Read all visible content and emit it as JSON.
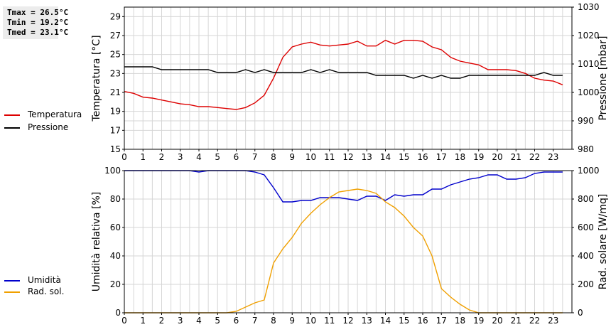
{
  "stats": {
    "tmax": "Tmax = 26.5°C",
    "tmin": "Tmin = 19.2°C",
    "tmed": "Tmed = 23.1°C"
  },
  "legends": {
    "top": [
      {
        "label": "Temperatura",
        "color": "#dd0000"
      },
      {
        "label": "Pressione",
        "color": "#000000"
      }
    ],
    "bottom": [
      {
        "label": "Umidità",
        "color": "#0000cc"
      },
      {
        "label": "Rad. sol.",
        "color": "#f0a000"
      }
    ]
  },
  "chart_data": [
    {
      "type": "line",
      "xlim": [
        0,
        24
      ],
      "xticks": [
        "0",
        "1",
        "2",
        "3",
        "4",
        "5",
        "6",
        "7",
        "8",
        "9",
        "10",
        "11",
        "12",
        "13",
        "14",
        "15",
        "16",
        "17",
        "18",
        "19",
        "20",
        "21",
        "22",
        "23"
      ],
      "ylabel": "Temperatura [°C]",
      "ylim": [
        15,
        30
      ],
      "yticks": [
        "15",
        "17",
        "19",
        "21",
        "23",
        "25",
        "27",
        "29"
      ],
      "y2label": "Pressione [mbar]",
      "y2lim": [
        980,
        1030
      ],
      "y2ticks": [
        "980",
        "990",
        "1000",
        "1010",
        "1020",
        "1030"
      ],
      "grid": true,
      "series": [
        {
          "name": "Temperatura",
          "axis": "left",
          "color": "#dd0000",
          "x": [
            0,
            0.5,
            1,
            1.5,
            2,
            2.5,
            3,
            3.5,
            4,
            4.5,
            5,
            5.5,
            6,
            6.5,
            7,
            7.5,
            8,
            8.5,
            9,
            9.5,
            10,
            10.5,
            11,
            11.5,
            12,
            12.5,
            13,
            13.5,
            14,
            14.5,
            15,
            15.5,
            16,
            16.5,
            17,
            17.5,
            18,
            18.5,
            19,
            19.5,
            20,
            20.5,
            21,
            21.5,
            22,
            22.5,
            23,
            23.5
          ],
          "values": [
            21.1,
            20.9,
            20.5,
            20.4,
            20.2,
            20.0,
            19.8,
            19.7,
            19.5,
            19.5,
            19.4,
            19.3,
            19.2,
            19.4,
            19.9,
            20.7,
            22.5,
            24.7,
            25.8,
            26.1,
            26.3,
            26.0,
            25.9,
            26.0,
            26.1,
            26.4,
            25.9,
            25.9,
            26.5,
            26.1,
            26.5,
            26.5,
            26.4,
            25.8,
            25.5,
            24.7,
            24.3,
            24.1,
            23.9,
            23.4,
            23.4,
            23.4,
            23.3,
            23.0,
            22.5,
            22.3,
            22.2,
            21.8
          ]
        },
        {
          "name": "Pressione",
          "axis": "right",
          "color": "#000000",
          "x": [
            0,
            0.5,
            1,
            1.5,
            2,
            2.5,
            3,
            3.5,
            4,
            4.5,
            5,
            5.5,
            6,
            6.5,
            7,
            7.5,
            8,
            8.5,
            9,
            9.5,
            10,
            10.5,
            11,
            11.5,
            12,
            12.5,
            13,
            13.5,
            14,
            14.5,
            15,
            15.5,
            16,
            16.5,
            17,
            17.5,
            18,
            18.5,
            19,
            19.5,
            20,
            20.5,
            21,
            21.5,
            22,
            22.5,
            23,
            23.5
          ],
          "values": [
            1009,
            1009,
            1009,
            1009,
            1008,
            1008,
            1008,
            1008,
            1008,
            1008,
            1007,
            1007,
            1007,
            1008,
            1007,
            1008,
            1007,
            1007,
            1007,
            1007,
            1008,
            1007,
            1008,
            1007,
            1007,
            1007,
            1007,
            1006,
            1006,
            1006,
            1006,
            1005,
            1006,
            1005,
            1006,
            1005,
            1005,
            1006,
            1006,
            1006,
            1006,
            1006,
            1006,
            1006,
            1006,
            1007,
            1006,
            1006
          ]
        }
      ]
    },
    {
      "type": "line",
      "xlim": [
        0,
        24
      ],
      "xticks": [
        "0",
        "1",
        "2",
        "3",
        "4",
        "5",
        "6",
        "7",
        "8",
        "9",
        "10",
        "11",
        "12",
        "13",
        "14",
        "15",
        "16",
        "17",
        "18",
        "19",
        "20",
        "21",
        "22",
        "23"
      ],
      "ylabel": "Umidità relativa [%]",
      "ylim": [
        0,
        100
      ],
      "yticks": [
        "0",
        "20",
        "40",
        "60",
        "80",
        "100"
      ],
      "y2label": "Rad. solare [W/mq]",
      "y2lim": [
        0,
        1000
      ],
      "y2ticks": [
        "0",
        "200",
        "400",
        "600",
        "800",
        "1000"
      ],
      "grid": true,
      "series": [
        {
          "name": "Umidità",
          "axis": "left",
          "color": "#0000cc",
          "x": [
            0,
            0.5,
            1,
            1.5,
            2,
            2.5,
            3,
            3.5,
            4,
            4.5,
            5,
            5.5,
            6,
            6.5,
            7,
            7.5,
            8,
            8.5,
            9,
            9.5,
            10,
            10.5,
            11,
            11.5,
            12,
            12.5,
            13,
            13.5,
            14,
            14.5,
            15,
            15.5,
            16,
            16.5,
            17,
            17.5,
            18,
            18.5,
            19,
            19.5,
            20,
            20.5,
            21,
            21.5,
            22,
            22.5,
            23,
            23.5
          ],
          "values": [
            100,
            100,
            100,
            100,
            100,
            100,
            100,
            100,
            99,
            100,
            100,
            100,
            100,
            100,
            99,
            97,
            88,
            78,
            78,
            79,
            79,
            81,
            81,
            81,
            80,
            79,
            82,
            82,
            79,
            83,
            82,
            83,
            83,
            87,
            87,
            90,
            92,
            94,
            95,
            97,
            97,
            94,
            94,
            95,
            98,
            99,
            99,
            99
          ]
        },
        {
          "name": "Rad. sol.",
          "axis": "right",
          "color": "#f0a000",
          "x": [
            0,
            0.5,
            1,
            1.5,
            2,
            2.5,
            3,
            3.5,
            4,
            4.5,
            5,
            5.5,
            6,
            6.5,
            7,
            7.5,
            8,
            8.5,
            9,
            9.5,
            10,
            10.5,
            11,
            11.5,
            12,
            12.5,
            13,
            13.5,
            14,
            14.5,
            15,
            15.5,
            16,
            16.5,
            17,
            17.5,
            18,
            18.5,
            19,
            19.5,
            20,
            20.5,
            21,
            21.5,
            22,
            22.5,
            23,
            23.5
          ],
          "values": [
            0,
            0,
            0,
            0,
            0,
            0,
            0,
            0,
            0,
            0,
            0,
            0,
            10,
            40,
            70,
            90,
            350,
            450,
            530,
            630,
            700,
            760,
            810,
            850,
            860,
            870,
            860,
            840,
            780,
            740,
            680,
            600,
            540,
            400,
            170,
            110,
            60,
            20,
            0,
            0,
            0,
            0,
            0,
            0,
            0,
            0,
            0,
            0
          ]
        }
      ]
    }
  ]
}
